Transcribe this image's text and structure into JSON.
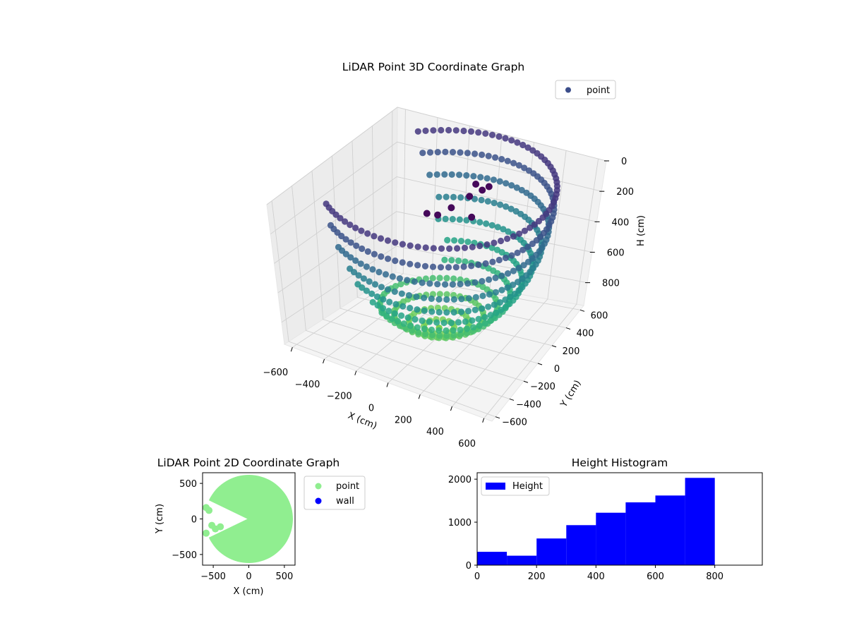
{
  "chart_data": [
    {
      "type": "scatter",
      "projection": "3d",
      "title": "LiDAR Point 3D Coordinate Graph",
      "xlabel": "X (cm)",
      "ylabel": "Y (cm)",
      "zlabel": "H (cm)",
      "xlim": [
        -650,
        650
      ],
      "ylim": [
        -650,
        650
      ],
      "zlim": [
        950,
        0
      ],
      "xticks": [
        -600,
        -400,
        -200,
        0,
        200,
        400,
        600
      ],
      "yticks": [
        -600,
        -400,
        -200,
        0,
        200,
        400,
        600
      ],
      "zticks": [
        0,
        200,
        400,
        600,
        800
      ],
      "xtick_labels": [
        "−600",
        "−400",
        "−200",
        "0",
        "200",
        "400",
        "600"
      ],
      "ytick_labels": [
        "−600",
        "−400",
        "−200",
        "0",
        "200",
        "400",
        "600"
      ],
      "ztick_labels": [
        "0",
        "200",
        "400",
        "600",
        "800"
      ],
      "colormap": "viridis",
      "grid": true,
      "legend": {
        "position": "top-right",
        "entries": [
          {
            "label": "point",
            "color": "#3b4d8a"
          }
        ]
      },
      "series": [
        {
          "name": "point",
          "shape": "hemispherical bowl of radius ~620 cm, depth ~900 cm, with a wedge opening toward -X",
          "radius": 620,
          "depth": 900,
          "dark_cluster": [
            {
              "x": 50,
              "y": 300,
              "h": 120
            },
            {
              "x": 80,
              "y": 320,
              "h": 160
            },
            {
              "x": 20,
              "y": 290,
              "h": 200
            },
            {
              "x": -80,
              "y": 120,
              "h": 260
            },
            {
              "x": -30,
              "y": 180,
              "h": 230
            },
            {
              "x": 110,
              "y": 340,
              "h": 140
            },
            {
              "x": -130,
              "y": 90,
              "h": 250
            },
            {
              "x": 60,
              "y": 250,
              "h": 300
            }
          ]
        }
      ]
    },
    {
      "type": "scatter",
      "title": "LiDAR Point 2D Coordinate Graph",
      "xlabel": "X (cm)",
      "ylabel": "Y (cm)",
      "xlim": [
        -650,
        650
      ],
      "ylim": [
        -650,
        650
      ],
      "xticks": [
        -500,
        0,
        500
      ],
      "yticks": [
        -500,
        0,
        500
      ],
      "xtick_labels": [
        "−500",
        "0",
        "500"
      ],
      "ytick_labels": [
        "−500",
        "0",
        "500"
      ],
      "legend": {
        "position": "outside-right",
        "entries": [
          {
            "label": "point",
            "color": "#90ee90"
          },
          {
            "label": "wall",
            "color": "#0000ff"
          }
        ]
      },
      "series": [
        {
          "name": "point",
          "color": "#90ee90",
          "shape": "filled disc of radius ~620 cm with a wedge cut-out toward -X"
        },
        {
          "name": "wall",
          "color": "#0000ff",
          "values": []
        }
      ]
    },
    {
      "type": "bar",
      "title": "Height Histogram",
      "xlim": [
        0,
        960
      ],
      "ylim": [
        0,
        2150
      ],
      "xticks": [
        0,
        200,
        400,
        600,
        800
      ],
      "yticks": [
        0,
        1000,
        2000
      ],
      "bin_edges": [
        0,
        100,
        200,
        300,
        400,
        500,
        600,
        700,
        800
      ],
      "values": [
        310,
        220,
        620,
        930,
        1220,
        1460,
        1620,
        2030
      ],
      "color": "#0000ff",
      "legend": {
        "position": "top-left",
        "entries": [
          {
            "label": "Height",
            "color": "#0000ff"
          }
        ]
      }
    }
  ]
}
